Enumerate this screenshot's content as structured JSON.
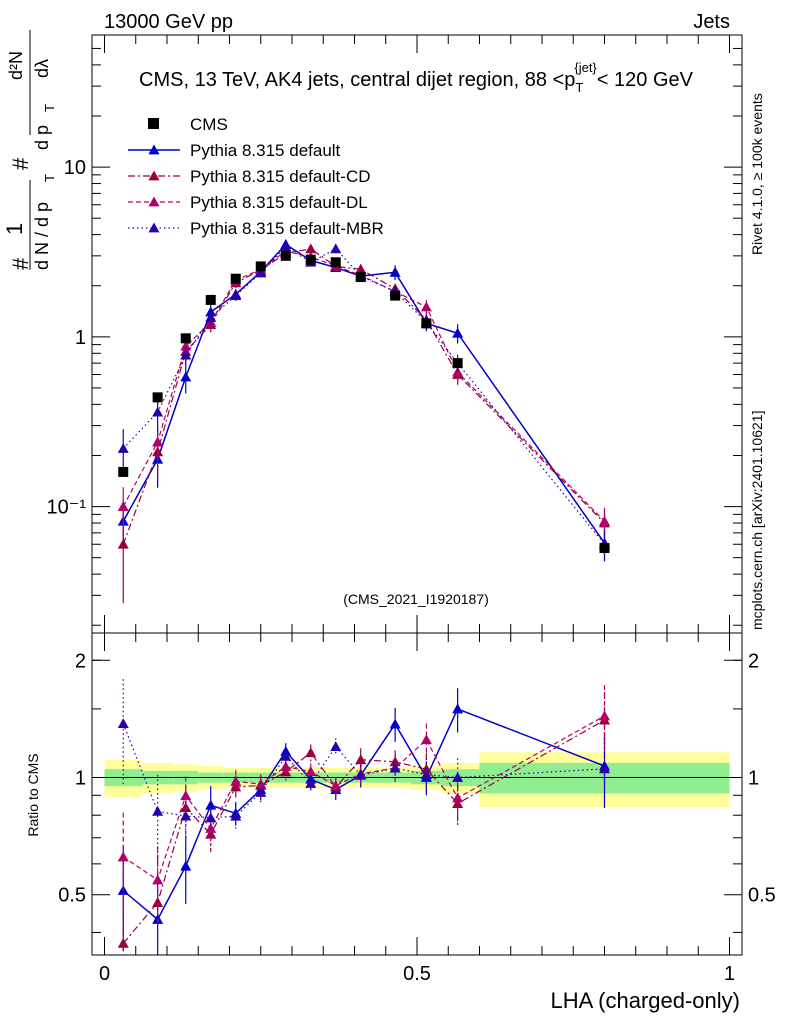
{
  "header": {
    "left": "13000 GeV pp",
    "right": "Jets"
  },
  "side_labels": {
    "rivet": "Rivet 4.1.0, ≥ 100k events",
    "mcplots": "mcplots.cern.ch [arXiv:2401.10621]"
  },
  "analysis_id": "(CMS_2021_I1920187)",
  "chart_data": {
    "type": "scatter",
    "title": "CMS, 13 TeV, AK4 jets, central dijet region, 88 <p_T^{jet}< 120 GeV",
    "xlabel": "LHA (charged-only)",
    "ylabel": "1/(dN/dp_T) · d²N/(dp_T dλ)",
    "ratio_ylabel": "Ratio to CMS",
    "xlim": [
      -0.02,
      1.02
    ],
    "ylim": [
      0.018,
      60
    ],
    "ratio_ylim": [
      0.35,
      2.35
    ],
    "yscale": "log",
    "x_ticks": [
      "0",
      "0.5",
      "1"
    ],
    "y_ticks": [
      "10⁻¹",
      "1",
      "10"
    ],
    "ratio_ticks": [
      "0.5",
      "1",
      "2"
    ],
    "legend": [
      {
        "name": "CMS",
        "color": "#000000",
        "style": "marker"
      },
      {
        "name": "Pythia 8.315 default",
        "color": "#0000cc",
        "style": "solid"
      },
      {
        "name": "Pythia 8.315 default-CD",
        "color": "#99003d",
        "style": "dashdot"
      },
      {
        "name": "Pythia 8.315 default-DL",
        "color": "#b3006b",
        "style": "dashed"
      },
      {
        "name": "Pythia 8.315 default-MBR",
        "color": "#2a00aa",
        "style": "dotted"
      }
    ],
    "x": [
      0.03,
      0.085,
      0.13,
      0.17,
      0.21,
      0.25,
      0.29,
      0.33,
      0.37,
      0.41,
      0.465,
      0.515,
      0.565,
      0.8
    ],
    "bins": [
      [
        0.0,
        0.06
      ],
      [
        0.06,
        0.11
      ],
      [
        0.11,
        0.15
      ],
      [
        0.15,
        0.19
      ],
      [
        0.19,
        0.23
      ],
      [
        0.23,
        0.27
      ],
      [
        0.27,
        0.31
      ],
      [
        0.31,
        0.35
      ],
      [
        0.35,
        0.39
      ],
      [
        0.39,
        0.44
      ],
      [
        0.44,
        0.49
      ],
      [
        0.49,
        0.54
      ],
      [
        0.54,
        0.6
      ],
      [
        0.6,
        1.0
      ]
    ],
    "data": {
      "values": [
        0.16,
        0.44,
        0.98,
        1.65,
        2.2,
        2.6,
        3.0,
        2.85,
        2.75,
        2.25,
        1.75,
        1.2,
        0.7,
        0.057
      ],
      "band_inner": [
        0.05,
        0.04,
        0.04,
        0.03,
        0.03,
        0.03,
        0.03,
        0.03,
        0.03,
        0.03,
        0.03,
        0.04,
        0.05,
        0.09
      ],
      "band_outer": [
        0.11,
        0.09,
        0.08,
        0.07,
        0.06,
        0.06,
        0.06,
        0.06,
        0.06,
        0.06,
        0.06,
        0.07,
        0.09,
        0.16
      ]
    },
    "series": [
      {
        "name": "Pythia 8.315 default",
        "color": "#0000cc",
        "dash": "",
        "width": 1.5,
        "values": [
          0.082,
          0.19,
          0.58,
          1.4,
          1.78,
          2.42,
          3.5,
          2.82,
          2.56,
          2.28,
          2.4,
          1.2,
          1.05,
          0.061
        ],
        "errors": [
          0.3,
          0.32,
          0.2,
          0.12,
          0.07,
          0.06,
          0.05,
          0.06,
          0.06,
          0.07,
          0.1,
          0.1,
          0.13,
          0.22
        ]
      },
      {
        "name": "Pythia 8.315 default-CD",
        "color": "#99003d",
        "dash": "7,3,2,3",
        "width": 1.2,
        "values": [
          0.06,
          0.21,
          0.82,
          1.18,
          2.08,
          2.48,
          3.1,
          3.3,
          2.6,
          2.5,
          1.92,
          1.26,
          0.6,
          0.08
        ],
        "errors": [
          0.55,
          0.3,
          0.14,
          0.1,
          0.07,
          0.06,
          0.05,
          0.05,
          0.06,
          0.07,
          0.07,
          0.1,
          0.13,
          0.18
        ]
      },
      {
        "name": "Pythia 8.315 default-DL",
        "color": "#b3006b",
        "dash": "5,3",
        "width": 1.2,
        "values": [
          0.1,
          0.24,
          0.88,
          1.22,
          2.15,
          2.5,
          3.2,
          2.95,
          2.62,
          2.3,
          1.85,
          1.5,
          0.62,
          0.082
        ],
        "errors": [
          0.3,
          0.22,
          0.12,
          0.1,
          0.07,
          0.06,
          0.05,
          0.05,
          0.05,
          0.06,
          0.08,
          0.1,
          0.13,
          0.2
        ]
      },
      {
        "name": "Pythia 8.315 default-MBR",
        "color": "#2a00aa",
        "dash": "1.5,3",
        "width": 1.2,
        "values": [
          0.22,
          0.36,
          0.78,
          1.3,
          1.75,
          2.38,
          3.4,
          2.75,
          3.3,
          2.28,
          1.85,
          1.22,
          0.7,
          0.06
        ],
        "errors": [
          0.3,
          0.24,
          0.12,
          0.1,
          0.07,
          0.06,
          0.05,
          0.05,
          0.05,
          0.06,
          0.08,
          0.1,
          0.12,
          0.2
        ]
      }
    ]
  },
  "colors": {
    "band_inner": "#90ee90",
    "band_outer": "#ffff99",
    "axis": "#000000",
    "side_text": "#888888",
    "analysis_text": "#aaaaaa"
  }
}
